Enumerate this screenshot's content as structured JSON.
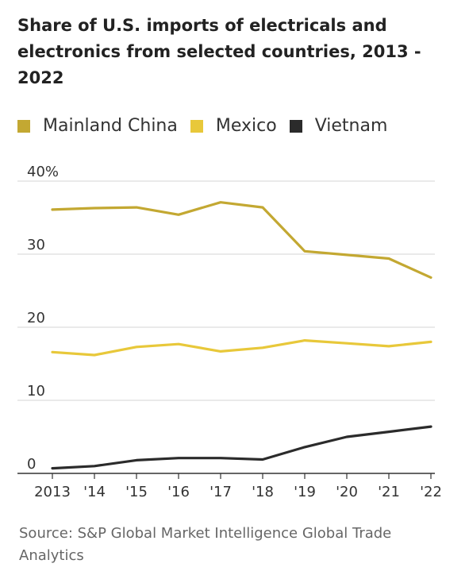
{
  "title": "Share of U.S. imports of electricals and electronics from selected countries, 2013 - 2022",
  "source": "Source: S&P Global Market Intelligence Global Trade Analytics",
  "legend": [
    {
      "label": "Mainland China",
      "color": "#c3a832"
    },
    {
      "label": "Mexico",
      "color": "#e8c83a"
    },
    {
      "label": "Vietnam",
      "color": "#2b2b2b"
    }
  ],
  "chart_data": {
    "type": "line",
    "title": "Share of U.S. imports of electricals and electronics from selected countries, 2013 - 2022",
    "xlabel": "",
    "ylabel": "",
    "x": [
      "2013",
      "'14",
      "'15",
      "'16",
      "'17",
      "'18",
      "'19",
      "'20",
      "'21",
      "'22"
    ],
    "y_ticks": [
      "0",
      "10",
      "20",
      "30",
      "40%"
    ],
    "ylim": [
      0,
      40
    ],
    "grid": true,
    "legend_position": "top",
    "series": [
      {
        "name": "Mainland China",
        "color": "#c3a832",
        "values": [
          36.1,
          36.3,
          36.4,
          35.4,
          37.1,
          36.4,
          30.4,
          29.9,
          29.4,
          26.8
        ]
      },
      {
        "name": "Mexico",
        "color": "#e8c83a",
        "values": [
          16.6,
          16.2,
          17.3,
          17.7,
          16.7,
          17.2,
          18.2,
          17.8,
          17.4,
          18.0
        ]
      },
      {
        "name": "Vietnam",
        "color": "#2b2b2b",
        "values": [
          0.7,
          1.0,
          1.8,
          2.1,
          2.1,
          1.9,
          3.6,
          5.0,
          5.7,
          6.4
        ]
      }
    ]
  }
}
